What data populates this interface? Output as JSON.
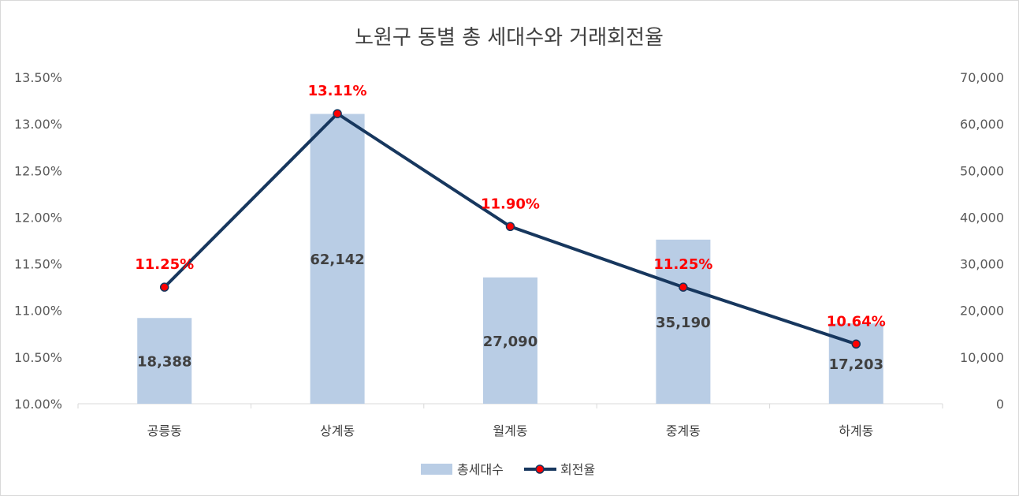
{
  "chart_data": {
    "type": "bar+line",
    "title": "노원구 동별 총 세대수와 거래회전율",
    "categories": [
      "공릉동",
      "상계동",
      "월계동",
      "중계동",
      "하계동"
    ],
    "series": [
      {
        "name": "총세대수",
        "type": "bar",
        "axis": "right",
        "values": [
          18388,
          62142,
          27090,
          35190,
          17203
        ],
        "labels": [
          "18,388",
          "62,142",
          "27,090",
          "35,190",
          "17,203"
        ],
        "color": "#b9cde5"
      },
      {
        "name": "회전율",
        "type": "line",
        "axis": "left",
        "values": [
          11.25,
          13.11,
          11.9,
          11.25,
          10.64
        ],
        "labels": [
          "11.25%",
          "13.11%",
          "11.90%",
          "11.25%",
          "10.64%"
        ],
        "color": "#17375e",
        "marker_color": "#ff0000",
        "label_color": "#ff0000"
      }
    ],
    "y_left": {
      "min": 10.0,
      "max": 13.5,
      "step": 0.5,
      "ticks": [
        "10.00%",
        "10.50%",
        "11.00%",
        "11.50%",
        "12.00%",
        "12.50%",
        "13.00%",
        "13.50%"
      ]
    },
    "y_right": {
      "min": 0,
      "max": 70000,
      "step": 10000,
      "ticks": [
        "0",
        "10,000",
        "20,000",
        "30,000",
        "40,000",
        "50,000",
        "60,000",
        "70,000"
      ]
    },
    "grid": false,
    "legend": {
      "position": "bottom",
      "entries": [
        "총세대수",
        "회전율"
      ]
    }
  }
}
